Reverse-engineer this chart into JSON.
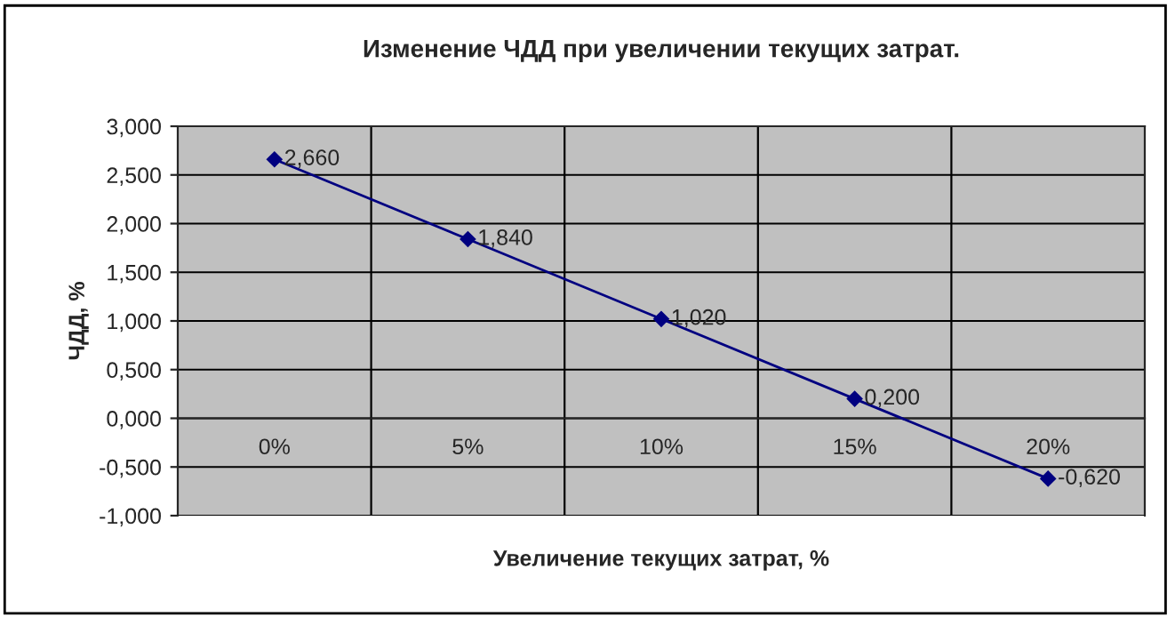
{
  "chart_data": {
    "type": "line",
    "title": "Изменение ЧДД при увеличении текущих затрат.",
    "xlabel": "Увеличение текущих затрат, %",
    "ylabel": "ЧДД, %",
    "categories": [
      "0%",
      "5%",
      "10%",
      "15%",
      "20%"
    ],
    "series": [
      {
        "color": "#000080",
        "values": [
          2.66,
          1.84,
          1.02,
          0.2,
          -0.62
        ],
        "value_labels": [
          "2,660",
          "1,840",
          "1,020",
          "0,200",
          "-0,620"
        ]
      }
    ],
    "ylim": [
      -1,
      3
    ],
    "yticks": [
      {
        "value": -1,
        "label": "-1,000"
      },
      {
        "value": -0.5,
        "label": "-0,500"
      },
      {
        "value": 0,
        "label": "0,000"
      },
      {
        "value": 0.5,
        "label": "0,500"
      },
      {
        "value": 1,
        "label": "1,000"
      },
      {
        "value": 1.5,
        "label": "1,500"
      },
      {
        "value": 2,
        "label": "2,000"
      },
      {
        "value": 2.5,
        "label": "2,500"
      },
      {
        "value": 3,
        "label": "3,000"
      }
    ],
    "grid": true,
    "marker": "diamond",
    "line_style": "solid",
    "legend": false
  }
}
